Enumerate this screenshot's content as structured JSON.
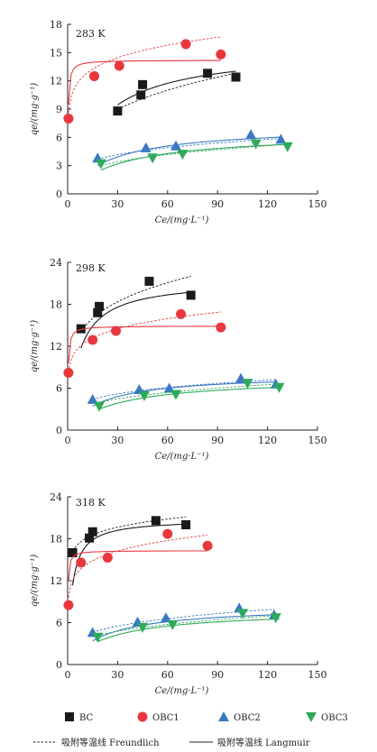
{
  "colors": {
    "BC": "#1a1a1a",
    "OBC1": "#e8383d",
    "OBC2": "#3a78c4",
    "OBC3": "#2faa5a",
    "axis": "#222222"
  },
  "legend": {
    "series": [
      {
        "key": "BC",
        "label": "BC",
        "marker": "square"
      },
      {
        "key": "OBC1",
        "label": "OBC1",
        "marker": "circle"
      },
      {
        "key": "OBC2",
        "label": "OBC2",
        "marker": "triangle-up"
      },
      {
        "key": "OBC3",
        "label": "OBC3",
        "marker": "triangle-down"
      }
    ],
    "freundlich_label": "吸附等温线 Freundlich",
    "langmuir_label": "吸附等温线 Langmuir"
  },
  "chart_data": [
    {
      "type": "scatter",
      "title": "283 K",
      "xlabel": "Ce/(mg·L⁻¹)",
      "ylabel": "qe/(mg·g⁻¹)",
      "xlim": [
        0,
        150
      ],
      "ylim": [
        0,
        18
      ],
      "xticks": [
        0,
        30,
        60,
        90,
        120,
        150
      ],
      "yticks": [
        0,
        3,
        6,
        9,
        12,
        15,
        18
      ],
      "series": [
        {
          "name": "BC",
          "marker": "square",
          "x": [
            30,
            44,
            45,
            84,
            101
          ],
          "y": [
            8.8,
            10.5,
            11.6,
            12.8,
            12.4
          ],
          "freundlich": {
            "K": 3.3,
            "n": 3.4,
            "range": [
              30,
              101
            ]
          },
          "langmuir": {
            "qm": 15.5,
            "KL": 0.052,
            "range": [
              30,
              101
            ]
          }
        },
        {
          "name": "OBC1",
          "marker": "circle",
          "x": [
            0.5,
            16,
            31,
            71,
            92
          ],
          "y": [
            8.0,
            12.5,
            13.6,
            15.9,
            14.8
          ],
          "freundlich": {
            "K": 9.4,
            "n": 7.9,
            "range": [
              0.5,
              92
            ]
          },
          "langmuir": {
            "qm": 14.2,
            "KL": 4.0,
            "range": [
              0.5,
              92
            ]
          }
        },
        {
          "name": "OBC2",
          "marker": "triangle-up",
          "x": [
            18,
            47,
            65,
            110,
            128
          ],
          "y": [
            3.8,
            4.9,
            5.1,
            6.3,
            5.8
          ],
          "freundlich": {
            "K": 1.85,
            "n": 4.2,
            "range": [
              18,
              128
            ]
          },
          "langmuir": {
            "qm": 7.2,
            "KL": 0.04,
            "range": [
              18,
              128
            ]
          }
        },
        {
          "name": "OBC3",
          "marker": "triangle-down",
          "x": [
            20,
            51,
            69,
            113,
            132
          ],
          "y": [
            3.2,
            3.8,
            4.2,
            5.3,
            5.0
          ],
          "freundlich": {
            "K": 1.25,
            "n": 3.4,
            "range": [
              20,
              132
            ]
          },
          "langmuir": {
            "qm": 6.5,
            "KL": 0.032,
            "range": [
              20,
              132
            ]
          }
        }
      ]
    },
    {
      "type": "scatter",
      "title": "298 K",
      "xlabel": "Ce/(mg·L⁻¹)",
      "ylabel": "qe/(mg·g⁻¹)",
      "xlim": [
        0,
        150
      ],
      "ylim": [
        0,
        24
      ],
      "xticks": [
        0,
        30,
        60,
        90,
        120,
        150
      ],
      "yticks": [
        0,
        6,
        12,
        18,
        24
      ],
      "series": [
        {
          "name": "BC",
          "marker": "square",
          "x": [
            8,
            18,
            19,
            49,
            74
          ],
          "y": [
            14.5,
            16.8,
            17.7,
            21.3,
            19.3
          ],
          "freundlich": {
            "K": 9.3,
            "n": 5.0,
            "range": [
              8,
              74
            ]
          },
          "langmuir": {
            "qm": 21.5,
            "KL": 0.15,
            "range": [
              8,
              74
            ]
          }
        },
        {
          "name": "OBC1",
          "marker": "circle",
          "x": [
            0.5,
            15,
            29,
            68,
            92
          ],
          "y": [
            8.2,
            12.9,
            14.2,
            16.6,
            14.7
          ],
          "freundlich": {
            "K": 9.1,
            "n": 7.3,
            "range": [
              0.5,
              92
            ]
          },
          "langmuir": {
            "qm": 14.9,
            "KL": 3.6,
            "range": [
              0.5,
              92
            ]
          }
        },
        {
          "name": "OBC2",
          "marker": "triangle-up",
          "x": [
            15,
            43,
            61,
            104,
            125
          ],
          "y": [
            4.4,
            5.8,
            6.0,
            7.4,
            6.6
          ],
          "freundlich": {
            "K": 2.35,
            "n": 4.3,
            "range": [
              15,
              125
            ]
          },
          "langmuir": {
            "qm": 8.0,
            "KL": 0.05,
            "range": [
              15,
              125
            ]
          }
        },
        {
          "name": "OBC3",
          "marker": "triangle-down",
          "x": [
            19,
            46,
            65,
            108,
            127
          ],
          "y": [
            3.4,
            4.9,
            5.1,
            6.7,
            6.1
          ],
          "freundlich": {
            "K": 1.78,
            "n": 3.7,
            "range": [
              19,
              127
            ]
          },
          "langmuir": {
            "qm": 7.5,
            "KL": 0.035,
            "range": [
              19,
              127
            ]
          }
        }
      ]
    },
    {
      "type": "scatter",
      "title": "318 K",
      "xlabel": "Ce/(mg·L⁻¹)",
      "ylabel": "qe/(mg·g⁻¹)",
      "xlim": [
        0,
        150
      ],
      "ylim": [
        0,
        24
      ],
      "xticks": [
        0,
        30,
        60,
        90,
        120,
        150
      ],
      "yticks": [
        0,
        6,
        12,
        18,
        24
      ],
      "series": [
        {
          "name": "BC",
          "marker": "square",
          "x": [
            3,
            13,
            15,
            53,
            71
          ],
          "y": [
            16.0,
            18.1,
            19.0,
            20.6,
            20.0
          ],
          "freundlich": {
            "K": 14.8,
            "n": 12,
            "range": [
              3,
              71
            ]
          },
          "langmuir": {
            "qm": 20.8,
            "KL": 0.4,
            "range": [
              3,
              71
            ]
          }
        },
        {
          "name": "OBC1",
          "marker": "circle",
          "x": [
            0.5,
            8,
            24,
            60,
            84
          ],
          "y": [
            8.5,
            14.6,
            15.3,
            18.7,
            17.0
          ],
          "freundlich": {
            "K": 10.5,
            "n": 7.8,
            "range": [
              0.5,
              84
            ]
          },
          "langmuir": {
            "qm": 16.3,
            "KL": 5.5,
            "range": [
              0.5,
              84
            ]
          }
        },
        {
          "name": "OBC2",
          "marker": "triangle-up",
          "x": [
            15,
            42,
            59,
            103,
            124
          ],
          "y": [
            4.6,
            6.1,
            6.7,
            8.1,
            7.1
          ],
          "freundlich": {
            "K": 2.3,
            "n": 3.9,
            "range": [
              15,
              124
            ]
          },
          "langmuir": {
            "qm": 8.4,
            "KL": 0.045,
            "range": [
              15,
              124
            ]
          }
        },
        {
          "name": "OBC3",
          "marker": "triangle-down",
          "x": [
            18,
            45,
            63,
            105,
            125
          ],
          "y": [
            3.9,
            5.3,
            5.7,
            7.3,
            6.7
          ],
          "freundlich": {
            "K": 1.9,
            "n": 3.7,
            "range": [
              18,
              125
            ]
          },
          "langmuir": {
            "qm": 7.8,
            "KL": 0.04,
            "range": [
              18,
              125
            ]
          }
        }
      ]
    }
  ]
}
